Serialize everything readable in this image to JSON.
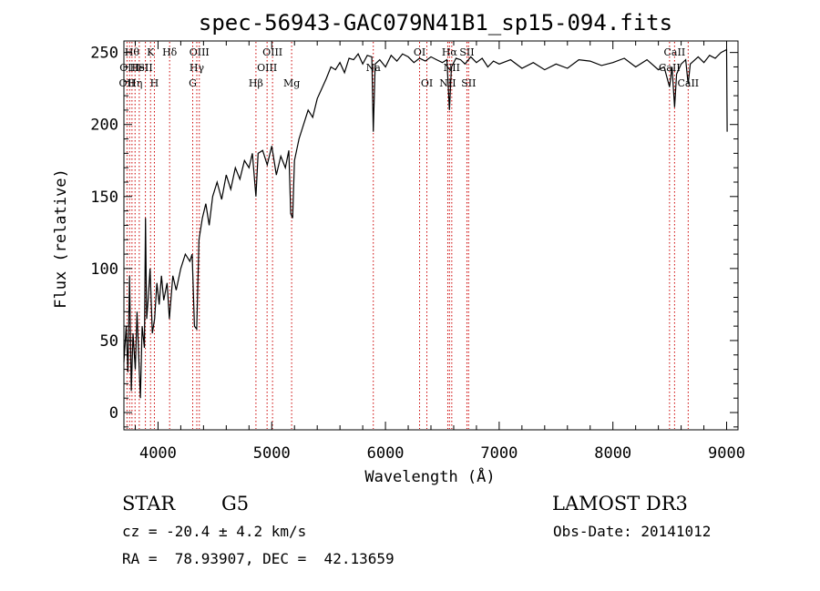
{
  "chart_data": {
    "type": "line",
    "title": "spec-56943-GAC079N41B1_sp15-094.fits",
    "xlabel": "Wavelength (Å)",
    "ylabel": "Flux (relative)",
    "xlim": [
      3700,
      9100
    ],
    "ylim": [
      -12,
      258
    ],
    "xticks": [
      4000,
      5000,
      6000,
      7000,
      8000,
      9000
    ],
    "xtick_labels": [
      "4000",
      "5000",
      "6000",
      "7000",
      "8000",
      "9000"
    ],
    "yticks": [
      0,
      50,
      100,
      150,
      200,
      250
    ],
    "ytick_labels": [
      "0",
      "50",
      "100",
      "150",
      "200",
      "250"
    ],
    "series": [
      {
        "name": "spectrum",
        "points": [
          [
            3700,
            35
          ],
          [
            3720,
            60
          ],
          [
            3735,
            28
          ],
          [
            3750,
            95
          ],
          [
            3765,
            15
          ],
          [
            3780,
            55
          ],
          [
            3800,
            30
          ],
          [
            3815,
            70
          ],
          [
            3830,
            40
          ],
          [
            3845,
            10
          ],
          [
            3860,
            60
          ],
          [
            3880,
            45
          ],
          [
            3890,
            135
          ],
          [
            3900,
            65
          ],
          [
            3915,
            80
          ],
          [
            3930,
            100
          ],
          [
            3950,
            55
          ],
          [
            3970,
            65
          ],
          [
            3990,
            90
          ],
          [
            4010,
            75
          ],
          [
            4030,
            95
          ],
          [
            4050,
            78
          ],
          [
            4080,
            90
          ],
          [
            4100,
            65
          ],
          [
            4130,
            95
          ],
          [
            4160,
            85
          ],
          [
            4200,
            100
          ],
          [
            4240,
            110
          ],
          [
            4280,
            105
          ],
          [
            4300,
            110
          ],
          [
            4320,
            60
          ],
          [
            4340,
            58
          ],
          [
            4360,
            120
          ],
          [
            4390,
            135
          ],
          [
            4420,
            145
          ],
          [
            4450,
            130
          ],
          [
            4480,
            150
          ],
          [
            4520,
            160
          ],
          [
            4560,
            148
          ],
          [
            4600,
            165
          ],
          [
            4640,
            155
          ],
          [
            4680,
            170
          ],
          [
            4720,
            162
          ],
          [
            4760,
            175
          ],
          [
            4800,
            170
          ],
          [
            4830,
            180
          ],
          [
            4861,
            150
          ],
          [
            4880,
            180
          ],
          [
            4920,
            182
          ],
          [
            4960,
            172
          ],
          [
            5000,
            185
          ],
          [
            5040,
            165
          ],
          [
            5080,
            178
          ],
          [
            5120,
            170
          ],
          [
            5150,
            182
          ],
          [
            5167,
            138
          ],
          [
            5184,
            135
          ],
          [
            5200,
            175
          ],
          [
            5240,
            190
          ],
          [
            5280,
            200
          ],
          [
            5320,
            210
          ],
          [
            5360,
            205
          ],
          [
            5400,
            218
          ],
          [
            5440,
            225
          ],
          [
            5480,
            232
          ],
          [
            5520,
            240
          ],
          [
            5560,
            238
          ],
          [
            5600,
            243
          ],
          [
            5640,
            236
          ],
          [
            5680,
            246
          ],
          [
            5720,
            245
          ],
          [
            5760,
            249
          ],
          [
            5800,
            242
          ],
          [
            5840,
            248
          ],
          [
            5880,
            247
          ],
          [
            5893,
            195
          ],
          [
            5910,
            242
          ],
          [
            5950,
            245
          ],
          [
            6000,
            240
          ],
          [
            6050,
            248
          ],
          [
            6100,
            244
          ],
          [
            6150,
            249
          ],
          [
            6200,
            247
          ],
          [
            6250,
            243
          ],
          [
            6300,
            246
          ],
          [
            6350,
            244
          ],
          [
            6400,
            247
          ],
          [
            6450,
            245
          ],
          [
            6500,
            243
          ],
          [
            6540,
            245
          ],
          [
            6563,
            210
          ],
          [
            6580,
            240
          ],
          [
            6620,
            246
          ],
          [
            6660,
            245
          ],
          [
            6700,
            242
          ],
          [
            6750,
            247
          ],
          [
            6800,
            243
          ],
          [
            6850,
            246
          ],
          [
            6900,
            240
          ],
          [
            6950,
            244
          ],
          [
            7000,
            242
          ],
          [
            7100,
            245
          ],
          [
            7200,
            239
          ],
          [
            7300,
            243
          ],
          [
            7400,
            238
          ],
          [
            7500,
            242
          ],
          [
            7600,
            239
          ],
          [
            7700,
            245
          ],
          [
            7800,
            244
          ],
          [
            7900,
            241
          ],
          [
            8000,
            243
          ],
          [
            8100,
            246
          ],
          [
            8200,
            240
          ],
          [
            8300,
            245
          ],
          [
            8400,
            238
          ],
          [
            8450,
            240
          ],
          [
            8498,
            226
          ],
          [
            8520,
            240
          ],
          [
            8542,
            212
          ],
          [
            8560,
            235
          ],
          [
            8600,
            242
          ],
          [
            8640,
            245
          ],
          [
            8662,
            228
          ],
          [
            8680,
            242
          ],
          [
            8750,
            247
          ],
          [
            8800,
            243
          ],
          [
            8850,
            248
          ],
          [
            8900,
            246
          ],
          [
            8950,
            250
          ],
          [
            9000,
            252
          ],
          [
            9005,
            195
          ]
        ]
      }
    ],
    "lines": [
      {
        "wavelength": 3727,
        "top": "OII",
        "row": 2
      },
      {
        "wavelength": 3750,
        "top": "OIII",
        "row": 1
      },
      {
        "wavelength": 3771,
        "top": "Hθ",
        "row": 0
      },
      {
        "wavelength": 3798,
        "top": "Hη",
        "row": 2
      },
      {
        "wavelength": 3835,
        "top": "HeI",
        "row": 1
      },
      {
        "wavelength": 3889,
        "top": "SII",
        "row": 1
      },
      {
        "wavelength": 3934,
        "top": "K",
        "row": 0
      },
      {
        "wavelength": 3968,
        "top": "H",
        "row": 2
      },
      {
        "wavelength": 4102,
        "top": "Hδ",
        "row": 0
      },
      {
        "wavelength": 4305,
        "top": "G",
        "row": 2
      },
      {
        "wavelength": 4341,
        "top": "Hγ",
        "row": 1
      },
      {
        "wavelength": 4363,
        "top": "OIII",
        "row": 0
      },
      {
        "wavelength": 4861,
        "top": "Hβ",
        "row": 2
      },
      {
        "wavelength": 4959,
        "top": "OIII",
        "row": 1
      },
      {
        "wavelength": 5007,
        "top": "OIII",
        "row": 0
      },
      {
        "wavelength": 5175,
        "top": "Mg",
        "row": 2
      },
      {
        "wavelength": 5893,
        "top": "Na",
        "row": 1
      },
      {
        "wavelength": 6300,
        "top": "OI",
        "row": 0
      },
      {
        "wavelength": 6364,
        "top": "OI",
        "row": 2
      },
      {
        "wavelength": 6548,
        "top": "NII",
        "row": 2
      },
      {
        "wavelength": 6563,
        "top": "Hα",
        "row": 0
      },
      {
        "wavelength": 6583,
        "top": "NII",
        "row": 1
      },
      {
        "wavelength": 6716,
        "top": "SII",
        "row": 0
      },
      {
        "wavelength": 6731,
        "top": "SII",
        "row": 2
      },
      {
        "wavelength": 8498,
        "top": "CaII",
        "row": 1
      },
      {
        "wavelength": 8542,
        "top": "CaII",
        "row": 0
      },
      {
        "wavelength": 8662,
        "top": "CaII",
        "row": 2
      }
    ],
    "line_color": "#cc0000",
    "spectrum_color": "#000000"
  },
  "info": {
    "object_class": "STAR",
    "subclass": "G5",
    "survey": "LAMOST DR3",
    "redshift": "cz = -20.4 ± 4.2 km/s",
    "obs_date": "Obs-Date: 20141012",
    "coords": "RA =  78.93907, DEC =  42.13659"
  }
}
